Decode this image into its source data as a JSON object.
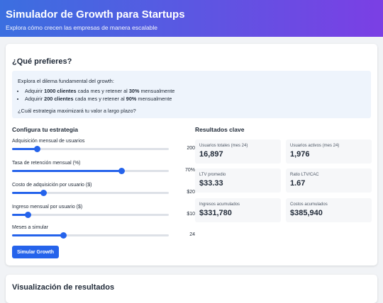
{
  "header": {
    "title": "Simulador de Growth para Startups",
    "subtitle": "Explora cómo crecen las empresas de manera escalable"
  },
  "card": {
    "title": "¿Qué prefieres?"
  },
  "info": {
    "intro": "Explora el dilema fundamental del growth:",
    "bullets": [
      [
        "Adquirir ",
        "1000 clientes",
        " cada mes y retener al ",
        "30%",
        " mensualmente"
      ],
      [
        "Adquirir ",
        "200 clientes",
        " cada mes y retener al ",
        "90%",
        " mensualmente"
      ]
    ],
    "question": "¿Cuál estrategia maximizará tu valor a largo plazo?"
  },
  "config": {
    "title": "Configura tu estrategia",
    "sliders": [
      {
        "label": "Adquisición mensual de usuarios",
        "value": "200"
      },
      {
        "label": "Tasa de retención mensual (%)",
        "value": "70%"
      },
      {
        "label": "Costo de adquisición por usuario ($)",
        "value": "$20"
      },
      {
        "label": "Ingreso mensual por usuario ($)",
        "value": "$10"
      },
      {
        "label": "Meses a simular",
        "value": "24"
      }
    ],
    "button": "Simular Growth"
  },
  "results": {
    "title": "Resultados clave",
    "items": [
      {
        "label": "Usuarios totales (mes 24)",
        "value": "16,897"
      },
      {
        "label": "Usuarios activos (mes 24)",
        "value": "1,976"
      },
      {
        "label": "LTV promedio",
        "value": "$33.33"
      },
      {
        "label": "Ratio LTV/CAC",
        "value": "1.67"
      },
      {
        "label": "Ingresos acumulados",
        "value": "$331,780"
      },
      {
        "label": "Costos acumulados",
        "value": "$385,940"
      }
    ]
  },
  "viz": {
    "title": "Visualización de resultados"
  }
}
